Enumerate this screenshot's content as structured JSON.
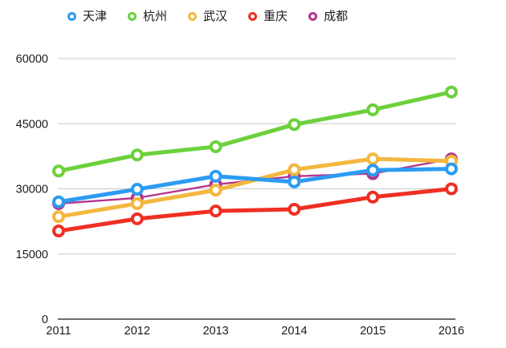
{
  "chart_data": {
    "type": "line",
    "title": "",
    "xlabel": "",
    "ylabel": "",
    "categories": [
      "2011",
      "2012",
      "2013",
      "2014",
      "2015",
      "2016"
    ],
    "yticks": [
      0,
      15000,
      30000,
      45000,
      60000
    ],
    "ylim": [
      0,
      60000
    ],
    "grid": true,
    "legend_position": "top",
    "marker_style": "hollow-ring",
    "series": [
      {
        "name": "天津",
        "color": "#2B9CF2",
        "values": [
          27000,
          29900,
          32900,
          31600,
          34300,
          34600
        ]
      },
      {
        "name": "杭州",
        "color": "#6CD13C",
        "values": [
          34100,
          37800,
          39700,
          44800,
          48200,
          52300
        ]
      },
      {
        "name": "武汉",
        "color": "#F3B73F",
        "values": [
          23600,
          26600,
          29700,
          34400,
          36900,
          36400
        ]
      },
      {
        "name": "重庆",
        "color": "#EE3023",
        "values": [
          20300,
          23100,
          24900,
          25300,
          28100,
          30000
        ]
      },
      {
        "name": "成都",
        "color": "#B5358C",
        "values": [
          26600,
          27900,
          31000,
          32900,
          33500,
          36900
        ],
        "thin_line": true
      }
    ],
    "colors": {
      "grid": "#c9c9c9",
      "axis": "#3c3c3c",
      "text": "#1a1a1a",
      "background": "#ffffff"
    }
  }
}
